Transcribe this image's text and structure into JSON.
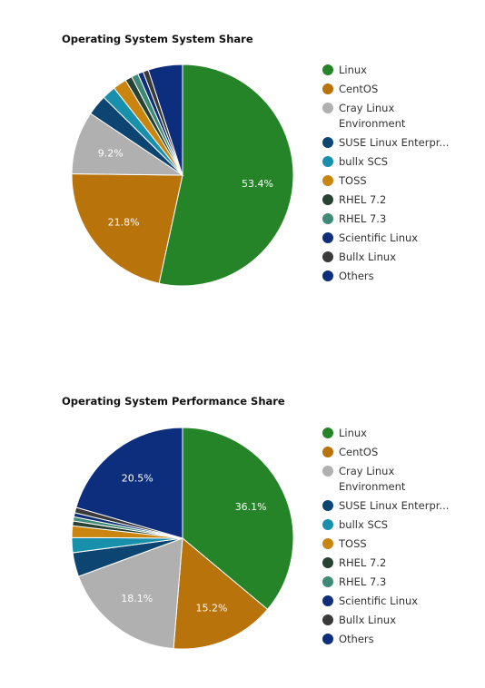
{
  "chart_data": [
    {
      "type": "pie",
      "title": "Operating System System Share",
      "categories": [
        "Linux",
        "CentOS",
        "Cray Linux Environment",
        "SUSE Linux Enterpr...",
        "bullx SCS",
        "TOSS",
        "RHEL 7.2",
        "RHEL 7.3",
        "Scientific Linux",
        "Bullx Linux",
        "Others"
      ],
      "values": [
        53.4,
        21.8,
        9.2,
        3.0,
        2.0,
        2.0,
        1.0,
        1.0,
        0.8,
        0.8,
        5.0
      ],
      "data_labels": [
        "53.4%",
        "21.8%",
        "9.2%",
        "",
        "",
        "",
        "",
        "",
        "",
        "",
        ""
      ],
      "colors": [
        "#258427",
        "#b8730a",
        "#b0b0b0",
        "#0d4572",
        "#1890ac",
        "#c98510",
        "#254232",
        "#3e8a74",
        "#0f2f7a",
        "#3a3a3a",
        "#0d2d7d"
      ],
      "legend_position": "right"
    },
    {
      "type": "pie",
      "title": "Operating System Performance Share",
      "categories": [
        "Linux",
        "CentOS",
        "Cray Linux Environment",
        "SUSE Linux Enterpr...",
        "bullx SCS",
        "TOSS",
        "RHEL 7.2",
        "RHEL 7.3",
        "Scientific Linux",
        "Bullx Linux",
        "Others"
      ],
      "values": [
        36.1,
        15.2,
        18.1,
        3.5,
        2.2,
        1.7,
        0.7,
        0.6,
        0.6,
        0.8,
        20.5
      ],
      "data_labels": [
        "36.1%",
        "15.2%",
        "18.1%",
        "",
        "",
        "",
        "",
        "",
        "",
        "",
        "20.5%"
      ],
      "colors": [
        "#258427",
        "#b8730a",
        "#b0b0b0",
        "#0d4572",
        "#1890ac",
        "#c98510",
        "#254232",
        "#3e8a74",
        "#0f2f7a",
        "#3a3a3a",
        "#0d2d7d"
      ],
      "legend_position": "right"
    }
  ]
}
